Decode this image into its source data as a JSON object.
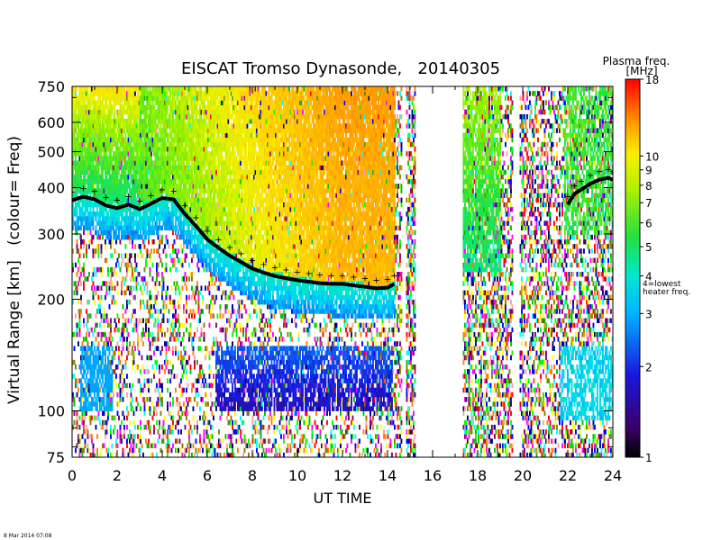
{
  "chart_data": {
    "type": "heatmap",
    "title": "EISCAT Tromso Dynasonde,   20140305",
    "xlabel": "UT TIME",
    "ylabel": "Virtual Range [km]   (colour= Freq)",
    "x_ticks": [
      "0",
      "2",
      "4",
      "6",
      "8",
      "10",
      "12",
      "14",
      "16",
      "18",
      "20",
      "22",
      "24"
    ],
    "y_ticks": [
      "75",
      "100",
      "200",
      "300",
      "400",
      "500",
      "600",
      "750"
    ],
    "y_tick_values": [
      75,
      100,
      200,
      300,
      400,
      500,
      600,
      750
    ],
    "x_range": [
      0,
      24
    ],
    "y_range": [
      75,
      750
    ],
    "y_scale": "log",
    "colorbar": {
      "title": "Plasma freq.",
      "unit": "[MHz]",
      "scale": "log",
      "range": [
        1,
        18
      ],
      "tick_labels": [
        "1",
        "2",
        "3",
        "4",
        "5",
        "6",
        "7",
        "8",
        "9",
        "10",
        "18"
      ],
      "tick_values": [
        1,
        2,
        3,
        4,
        5,
        6,
        7,
        8,
        9,
        10,
        18
      ],
      "heater_marker": {
        "value": 4,
        "label_line1": "4=lowest",
        "label_line2": "heater freq."
      }
    },
    "f_region_trace": {
      "description_color": "#000000",
      "x": [
        0,
        0.5,
        1,
        1.5,
        2,
        2.5,
        3,
        3.5,
        4,
        4.5,
        5,
        5.5,
        6,
        6.5,
        7,
        7.5,
        8,
        8.5,
        9,
        9.5,
        10,
        10.5,
        11,
        11.5,
        12,
        12.5,
        13,
        13.5,
        14,
        14.3
      ],
      "y": [
        370,
        378,
        372,
        358,
        352,
        360,
        350,
        362,
        375,
        372,
        340,
        315,
        290,
        275,
        262,
        252,
        242,
        236,
        231,
        228,
        225,
        223,
        221,
        220,
        220,
        218,
        216,
        214,
        215,
        220
      ]
    },
    "evening_trace": {
      "x": [
        22.0,
        22.3,
        22.6,
        23.0,
        23.4,
        23.8,
        24.0
      ],
      "y": [
        360,
        385,
        395,
        410,
        420,
        425,
        420
      ]
    },
    "data_gaps": [
      [
        14.6,
        14.8
      ],
      [
        15.2,
        17.3
      ],
      [
        19.5,
        19.8
      ]
    ]
  },
  "footer": {
    "timestamp": "8 Mar 2014 07:08"
  }
}
